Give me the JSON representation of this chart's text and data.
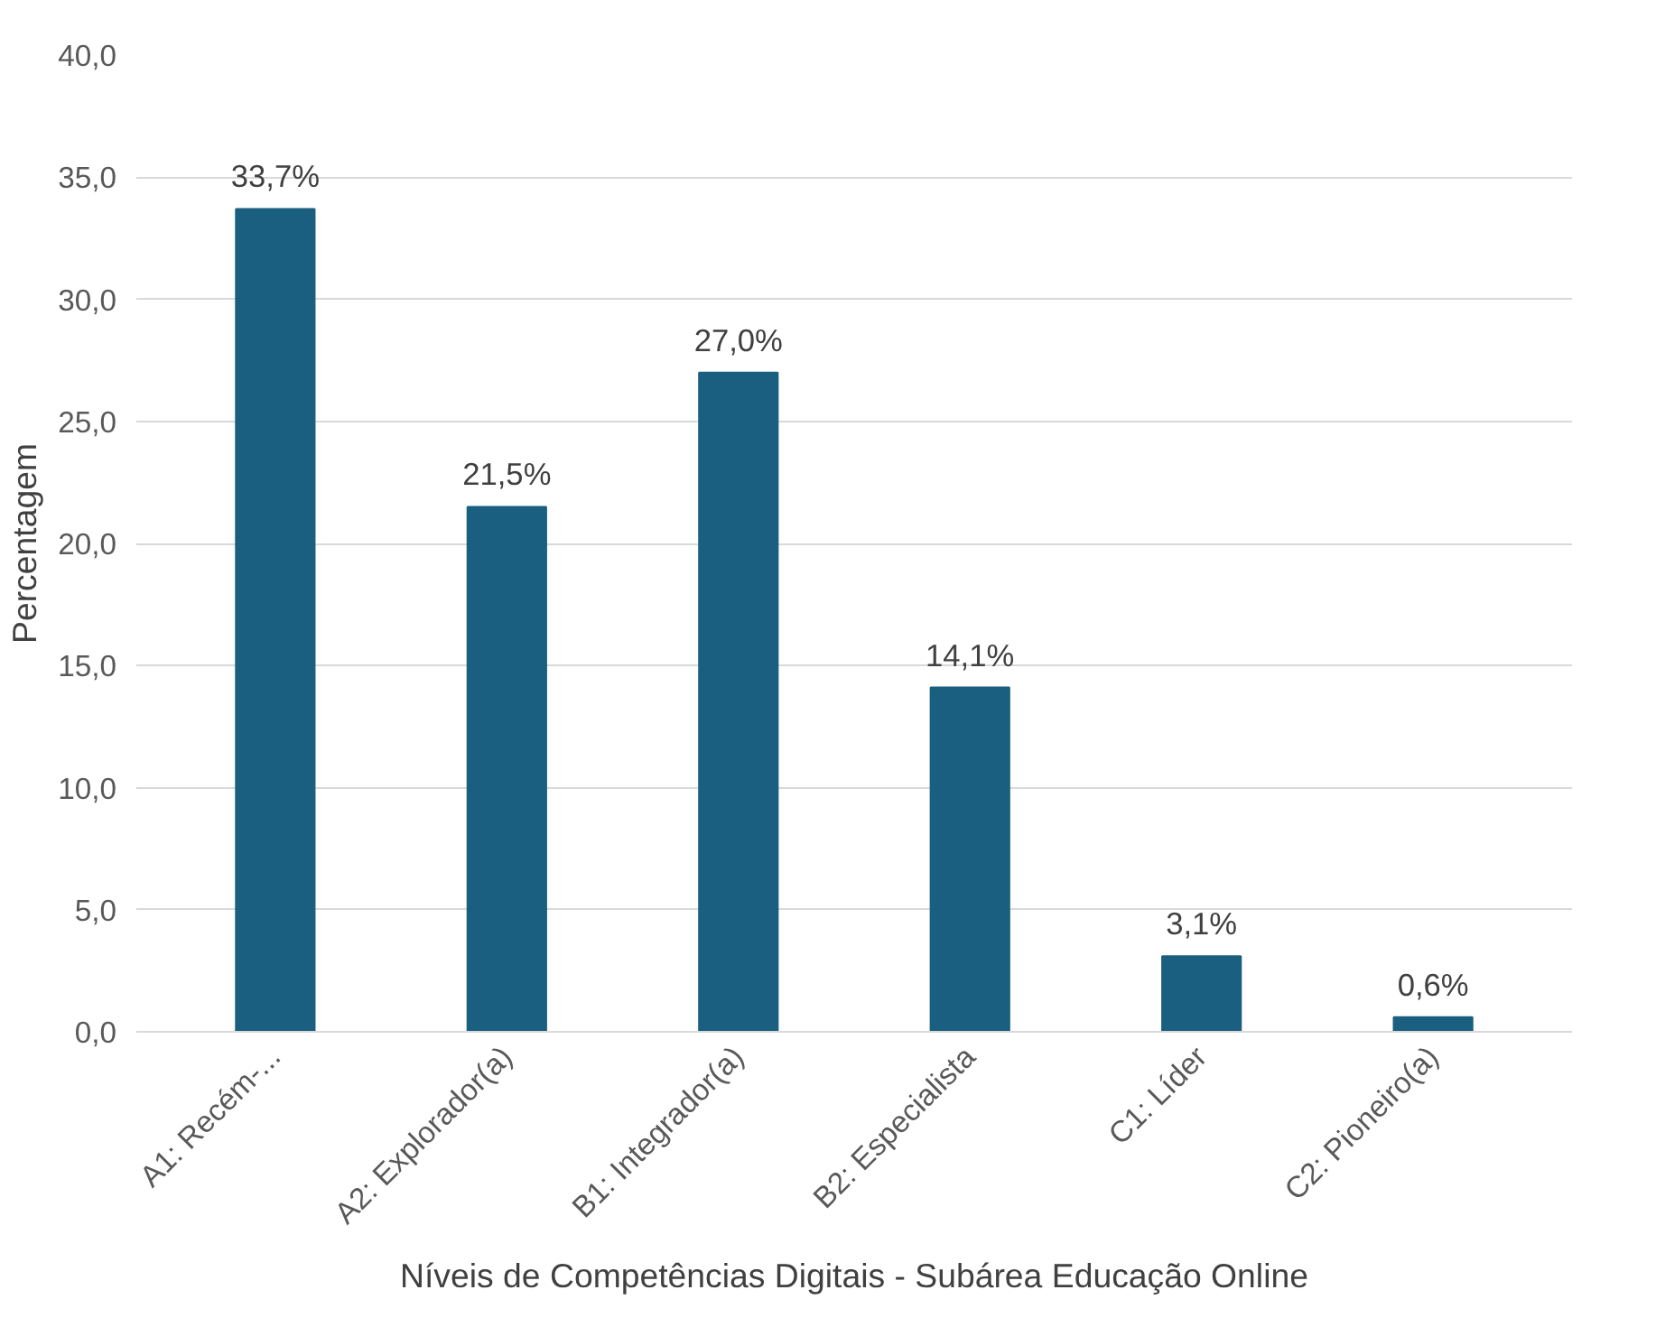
{
  "chart_data": {
    "type": "bar",
    "xlabel": "Níveis de Competências Digitais - Subárea Educação Online",
    "ylabel": "Percentagem",
    "categories": [
      "A1: Recém-...",
      "A2: Explorador(a)",
      "B1: Integrador(a)",
      "B2: Especialista",
      "C1: Líder",
      "C2: Pioneiro(a)"
    ],
    "values": [
      33.7,
      21.5,
      27.0,
      14.1,
      3.1,
      0.6
    ],
    "value_labels": [
      "33,7%",
      "21,5%",
      "27,0%",
      "14,1%",
      "3,1%",
      "0,6%"
    ],
    "color": "#1a5f7f",
    "ylim": [
      0,
      40
    ],
    "yticks": [
      {
        "value": 0,
        "label": "0,0"
      },
      {
        "value": 5,
        "label": "5,0"
      },
      {
        "value": 10,
        "label": "10,0"
      },
      {
        "value": 15,
        "label": "15,0"
      },
      {
        "value": 20,
        "label": "20,0"
      },
      {
        "value": 25,
        "label": "25,0"
      },
      {
        "value": 30,
        "label": "30,0"
      },
      {
        "value": 35,
        "label": "35,0"
      },
      {
        "value": 40,
        "label": "40,0"
      }
    ],
    "grid": "y"
  }
}
